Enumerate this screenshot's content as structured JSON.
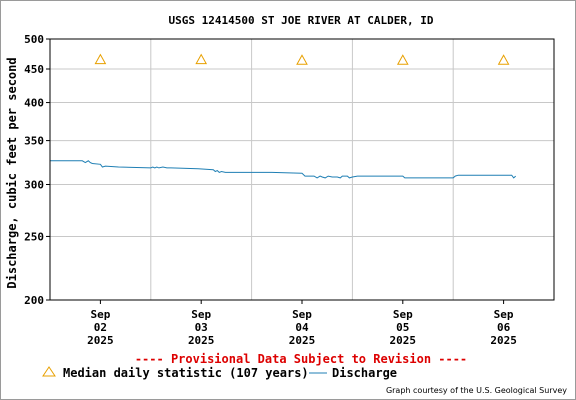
{
  "chart_data": {
    "type": "line",
    "title": "USGS 12414500 ST JOE RIVER AT CALDER, ID",
    "ylabel": "Discharge, cubic feet per second",
    "y_scale": "log",
    "ylim": [
      200,
      500
    ],
    "y_ticks": [
      200,
      250,
      300,
      350,
      400,
      450,
      500
    ],
    "x_ticks": [
      {
        "t": 0,
        "lines": [
          "Sep",
          "02",
          "2025"
        ]
      },
      {
        "t": 1,
        "lines": [
          "Sep",
          "03",
          "2025"
        ]
      },
      {
        "t": 2,
        "lines": [
          "Sep",
          "04",
          "2025"
        ]
      },
      {
        "t": 3,
        "lines": [
          "Sep",
          "05",
          "2025"
        ]
      },
      {
        "t": 4,
        "lines": [
          "Sep",
          "06",
          "2025"
        ]
      }
    ],
    "xlim": [
      -0.5,
      4.5
    ],
    "grid": true,
    "series": [
      {
        "name": "Discharge",
        "color": "#1f7fb4",
        "points": [
          [
            -0.5,
            326
          ],
          [
            -0.18,
            326
          ],
          [
            -0.15,
            324
          ],
          [
            -0.12,
            326
          ],
          [
            -0.1,
            324
          ],
          [
            -0.08,
            323
          ],
          [
            0.0,
            322
          ],
          [
            0.02,
            319
          ],
          [
            0.05,
            320
          ],
          [
            0.18,
            319
          ],
          [
            0.5,
            318
          ],
          [
            0.52,
            319
          ],
          [
            0.54,
            318
          ],
          [
            0.56,
            319
          ],
          [
            0.58,
            318
          ],
          [
            0.62,
            319
          ],
          [
            0.66,
            318
          ],
          [
            0.7,
            318
          ],
          [
            0.97,
            317
          ],
          [
            1.12,
            316
          ],
          [
            1.14,
            314
          ],
          [
            1.16,
            315
          ],
          [
            1.18,
            313
          ],
          [
            1.2,
            314
          ],
          [
            1.24,
            313
          ],
          [
            1.7,
            313
          ],
          [
            2.0,
            312
          ],
          [
            2.03,
            309
          ],
          [
            2.12,
            309
          ],
          [
            2.15,
            307
          ],
          [
            2.18,
            309
          ],
          [
            2.2,
            308
          ],
          [
            2.23,
            307
          ],
          [
            2.26,
            309
          ],
          [
            2.3,
            308
          ],
          [
            2.35,
            308
          ],
          [
            2.38,
            307
          ],
          [
            2.4,
            309
          ],
          [
            2.45,
            309
          ],
          [
            2.47,
            307
          ],
          [
            2.5,
            308
          ],
          [
            2.55,
            309
          ],
          [
            2.6,
            309
          ],
          [
            3.0,
            309
          ],
          [
            3.02,
            307
          ],
          [
            3.2,
            307
          ],
          [
            3.5,
            307
          ],
          [
            3.52,
            309
          ],
          [
            3.55,
            310
          ],
          [
            3.6,
            310
          ],
          [
            4.08,
            310
          ],
          [
            4.1,
            307
          ],
          [
            4.12,
            309
          ]
        ]
      },
      {
        "name": "Median daily statistic (107 years)",
        "marker": "triangle",
        "color": "#e8a000",
        "points": [
          [
            0,
            465
          ],
          [
            1,
            465
          ],
          [
            2,
            464
          ],
          [
            3,
            464
          ],
          [
            4,
            464
          ]
        ]
      }
    ],
    "annotation": "---- Provisional Data Subject to Revision ----",
    "legend": {
      "placement": "bottom-left",
      "median_label": "Median daily statistic (107 years)",
      "discharge_label": "Discharge"
    },
    "credit": "Graph courtesy of the U.S. Geological Survey"
  }
}
